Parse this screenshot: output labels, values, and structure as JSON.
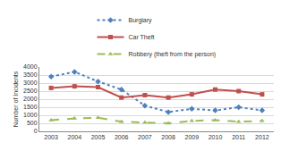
{
  "chart_data": {
    "type": "line",
    "y_label": "Number of Incidents",
    "categories": [
      "2003",
      "2004",
      "2005",
      "2006",
      "2007",
      "2008",
      "2009",
      "2010",
      "2011",
      "2012"
    ],
    "series": [
      {
        "name": "Burglary",
        "color": "#4f81bd",
        "marker": "diamond",
        "line_style": "dot",
        "values": [
          3400,
          3700,
          3100,
          2600,
          1600,
          1200,
          1400,
          1300,
          1500,
          1300
        ]
      },
      {
        "name": "Car Theft",
        "color": "#c0504d",
        "marker": "square",
        "line_style": "solid",
        "values": [
          2700,
          2800,
          2750,
          2100,
          2250,
          2100,
          2300,
          2600,
          2500,
          2300
        ]
      },
      {
        "name": "Robbery (theft from the person)",
        "color": "#9bbb59",
        "marker": "triangle",
        "line_style": "dash",
        "values": [
          700,
          800,
          850,
          600,
          550,
          500,
          650,
          700,
          600,
          650
        ]
      }
    ],
    "ylim": [
      0,
      4000
    ],
    "yticks": [
      0,
      500,
      1000,
      1500,
      2000,
      2500,
      3000,
      3500,
      4000
    ],
    "grid": true,
    "legend": "top"
  }
}
